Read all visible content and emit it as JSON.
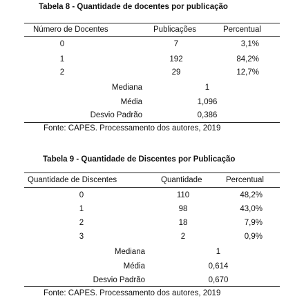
{
  "table8": {
    "title": "Tabela 8 - Quantidade de docentes por publicação",
    "headers": [
      "Número de Docentes",
      "Publicações",
      "Percentual"
    ],
    "rows": [
      {
        "n": "0",
        "pub": "7",
        "pct": "3,1%"
      },
      {
        "n": "1",
        "pub": "192",
        "pct": "84,2%"
      },
      {
        "n": "2",
        "pub": "29",
        "pct": "12,7%"
      }
    ],
    "stats": [
      {
        "label": "Mediana",
        "value": "1"
      },
      {
        "label": "Média",
        "value": "1,096"
      },
      {
        "label": "Desvio Padrão",
        "value": "0,386"
      }
    ],
    "source": "Fonte: CAPES. Processamento dos autores, 2019"
  },
  "table9": {
    "title": "Tabela 9 - Quantidade de Discentes por Publicação",
    "headers": [
      "Quantidade de Discentes",
      "Quantidade",
      "Percentual"
    ],
    "rows": [
      {
        "n": "0",
        "qty": "110",
        "pct": "48,2%"
      },
      {
        "n": "1",
        "qty": "98",
        "pct": "43,0%"
      },
      {
        "n": "2",
        "qty": "18",
        "pct": "7,9%"
      },
      {
        "n": "3",
        "qty": "2",
        "pct": "0,9%"
      }
    ],
    "stats": [
      {
        "label": "Mediana",
        "value": "1"
      },
      {
        "label": "Média",
        "value": "0,614"
      },
      {
        "label": "Desvio Padrão",
        "value": "0,670"
      }
    ],
    "source": "Fonte: CAPES. Processamento dos autores, 2019"
  }
}
